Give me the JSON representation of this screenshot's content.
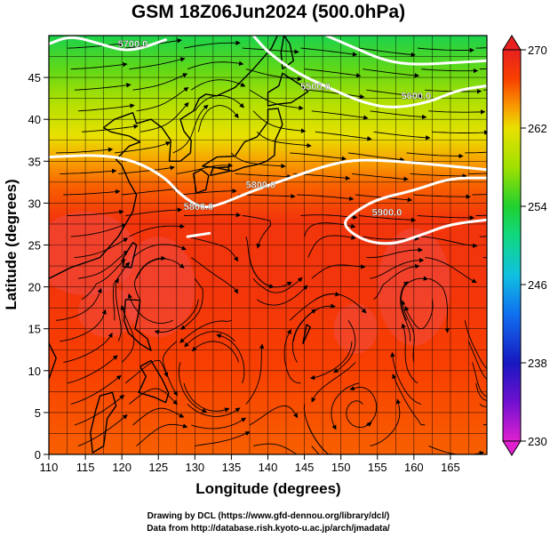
{
  "chart_data": {
    "type": "heatmap",
    "title": "GSM 18Z06Jun2024 (500.0hPa)",
    "xlabel": "Longitude (degrees)",
    "ylabel": "Latitude  (degrees)",
    "xlim": [
      110,
      170
    ],
    "ylim": [
      0,
      50
    ],
    "xticks": [
      "110",
      "115",
      "120",
      "125",
      "130",
      "135",
      "140",
      "145",
      "150",
      "155",
      "160",
      "165"
    ],
    "yticks": [
      "0",
      "5",
      "10",
      "15",
      "20",
      "25",
      "30",
      "35",
      "40",
      "45"
    ],
    "grid": true,
    "overlay": "streamlines",
    "colorbar": {
      "ticks": [
        "230",
        "238",
        "246",
        "254",
        "262",
        "270"
      ],
      "range": [
        230,
        270
      ],
      "stops": [
        {
          "v": 230,
          "color": "#e020d0"
        },
        {
          "v": 234,
          "color": "#7010d0"
        },
        {
          "v": 238,
          "color": "#1818c0"
        },
        {
          "v": 243,
          "color": "#1070f0"
        },
        {
          "v": 247,
          "color": "#10c0e0"
        },
        {
          "v": 251,
          "color": "#10d880"
        },
        {
          "v": 254,
          "color": "#20d030"
        },
        {
          "v": 258,
          "color": "#a0e000"
        },
        {
          "v": 262,
          "color": "#e8e000"
        },
        {
          "v": 264,
          "color": "#f8a000"
        },
        {
          "v": 267,
          "color": "#f84000"
        },
        {
          "v": 270,
          "color": "#e82020"
        }
      ]
    },
    "field_rows": [
      {
        "lat": 50,
        "value": 253
      },
      {
        "lat": 46,
        "value": 256
      },
      {
        "lat": 42,
        "value": 259
      },
      {
        "lat": 38,
        "value": 262
      },
      {
        "lat": 35,
        "value": 264
      },
      {
        "lat": 32,
        "value": 266
      },
      {
        "lat": 28,
        "value": 268
      },
      {
        "lat": 20,
        "value": 268
      },
      {
        "lat": 10,
        "value": 267
      },
      {
        "lat": 0,
        "value": 266
      }
    ],
    "contours": [
      {
        "label": "5700.0",
        "points": [
          [
            110,
            49
          ],
          [
            113,
            50
          ],
          [
            117,
            49
          ],
          [
            121,
            48
          ],
          [
            126,
            49.5
          ]
        ]
      },
      {
        "label": "5800.0",
        "points": [
          [
            110,
            35.5
          ],
          [
            117,
            35.8
          ],
          [
            122,
            35
          ],
          [
            126,
            33
          ],
          [
            128,
            31
          ],
          [
            131,
            29.3
          ],
          [
            134,
            30
          ],
          [
            138,
            31.5
          ],
          [
            143,
            33
          ],
          [
            148,
            34.5
          ],
          [
            152,
            35.2
          ],
          [
            158,
            35
          ],
          [
            164,
            34.5
          ],
          [
            170,
            34
          ]
        ]
      },
      {
        "label": "5500.0",
        "points": [
          [
            138,
            50
          ],
          [
            140,
            48
          ],
          [
            144,
            45.5
          ],
          [
            149,
            43.5
          ],
          [
            153,
            42
          ],
          [
            157,
            41.3
          ],
          [
            162,
            42
          ],
          [
            166,
            43.5
          ],
          [
            170,
            44
          ]
        ]
      },
      {
        "label": "5600.0",
        "points": [
          [
            148,
            50
          ],
          [
            152,
            48.5
          ],
          [
            156,
            47
          ],
          [
            160,
            46.5
          ],
          [
            166,
            46.8
          ],
          [
            170,
            47
          ]
        ]
      },
      {
        "label": "5900.0",
        "points": [
          [
            170,
            33
          ],
          [
            165,
            33
          ],
          [
            160,
            31.5
          ],
          [
            155,
            30.5
          ],
          [
            152,
            29
          ],
          [
            150,
            27.5
          ],
          [
            153,
            25.5
          ],
          [
            157,
            25
          ],
          [
            161,
            26.2
          ],
          [
            165,
            27.5
          ],
          [
            170,
            28
          ]
        ]
      },
      {
        "label": "5900.0",
        "points": [
          [
            129,
            26
          ],
          [
            132,
            26.4
          ]
        ]
      }
    ],
    "contour_labels": [
      {
        "text": "5700.0",
        "lon": 121.5,
        "lat": 48.6
      },
      {
        "text": "5800.0",
        "lon": 130.5,
        "lat": 29.2
      },
      {
        "text": "5800.0",
        "lon": 139,
        "lat": 31.8
      },
      {
        "text": "5500.0",
        "lon": 146.5,
        "lat": 43.5
      },
      {
        "text": "5600.0",
        "lon": 160.3,
        "lat": 42.4
      },
      {
        "text": "5900.0",
        "lon": 156.3,
        "lat": 28.5
      }
    ]
  },
  "credits": {
    "line1": "Drawing by DCL (https://www.gfd-dennou.org/library/dcl/)",
    "line2": "Data from http://database.rish.kyoto-u.ac.jp/arch/jmadata/"
  }
}
